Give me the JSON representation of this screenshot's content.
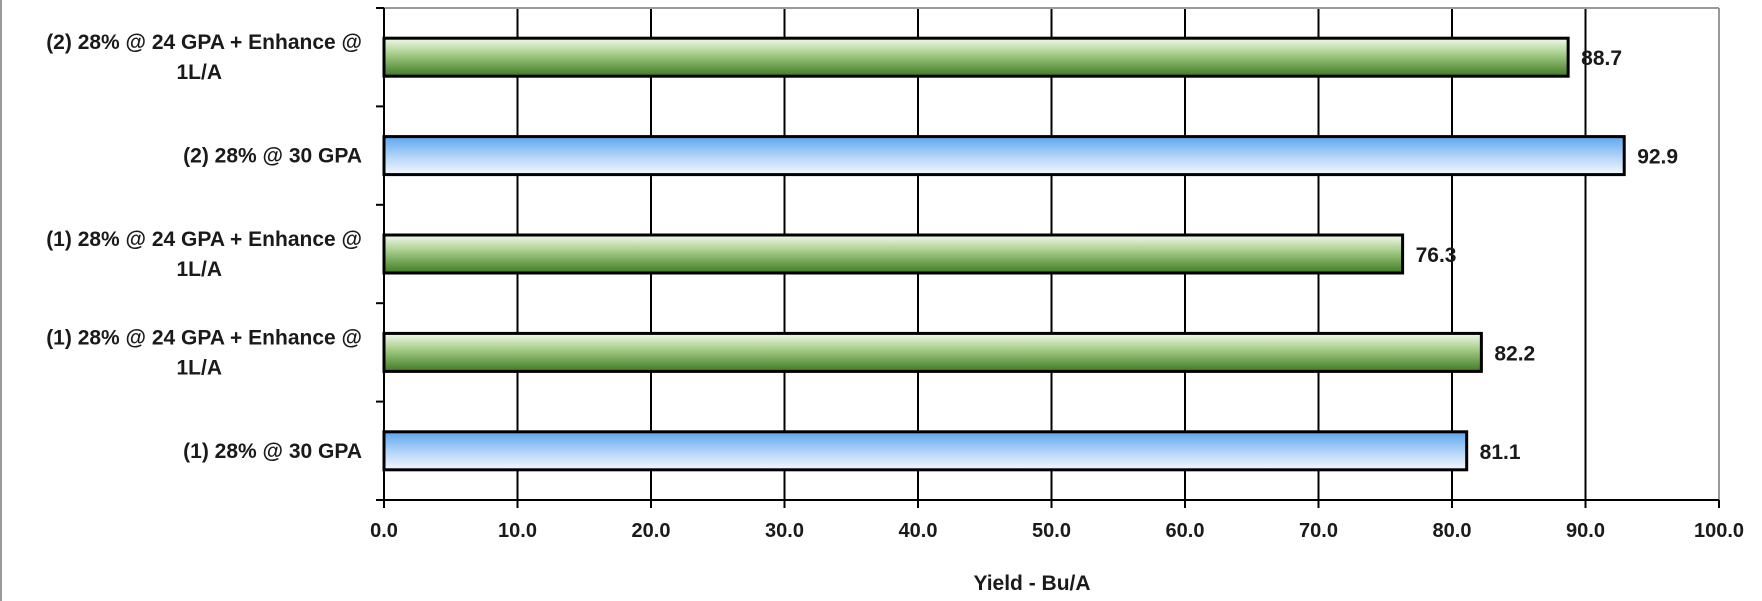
{
  "chart_data": {
    "type": "bar",
    "orientation": "horizontal",
    "categories": [
      "(2) 28% @ 24 GPA + Enhance @ 1L/A",
      "(2) 28% @ 30 GPA",
      "(1) 28% @ 24 GPA + Enhance @ 1L/A",
      "(1) 28% @ 24 GPA + Enhance @ 1L/A",
      "(1) 28% @ 30 GPA"
    ],
    "values": [
      88.7,
      92.9,
      76.3,
      82.2,
      81.1
    ],
    "value_labels": [
      "88.7",
      "92.9",
      "76.3",
      "82.2",
      "81.1"
    ],
    "bar_colors": [
      "green",
      "blue",
      "green",
      "green",
      "blue"
    ],
    "xlabel": "Yield - Bu/A",
    "ylabel": "",
    "title": "",
    "xlim": [
      0,
      100
    ],
    "x_ticks": [
      0,
      10,
      20,
      30,
      40,
      50,
      60,
      70,
      80,
      90,
      100
    ],
    "x_tick_labels": [
      "0.0",
      "10.0",
      "20.0",
      "30.0",
      "40.0",
      "50.0",
      "60.0",
      "70.0",
      "80.0",
      "90.0",
      "100.0"
    ],
    "grid": true,
    "legend": "none",
    "colors": {
      "green_light": "#f3f9ec",
      "green_mid": "#a9cf8c",
      "green_dark": "#3f7a22",
      "blue_light": "#f4f8ff",
      "blue_mid": "#b6d6f8",
      "blue_dark": "#5ca6ee",
      "gridline": "#000000",
      "bar_stroke": "#000000"
    }
  }
}
